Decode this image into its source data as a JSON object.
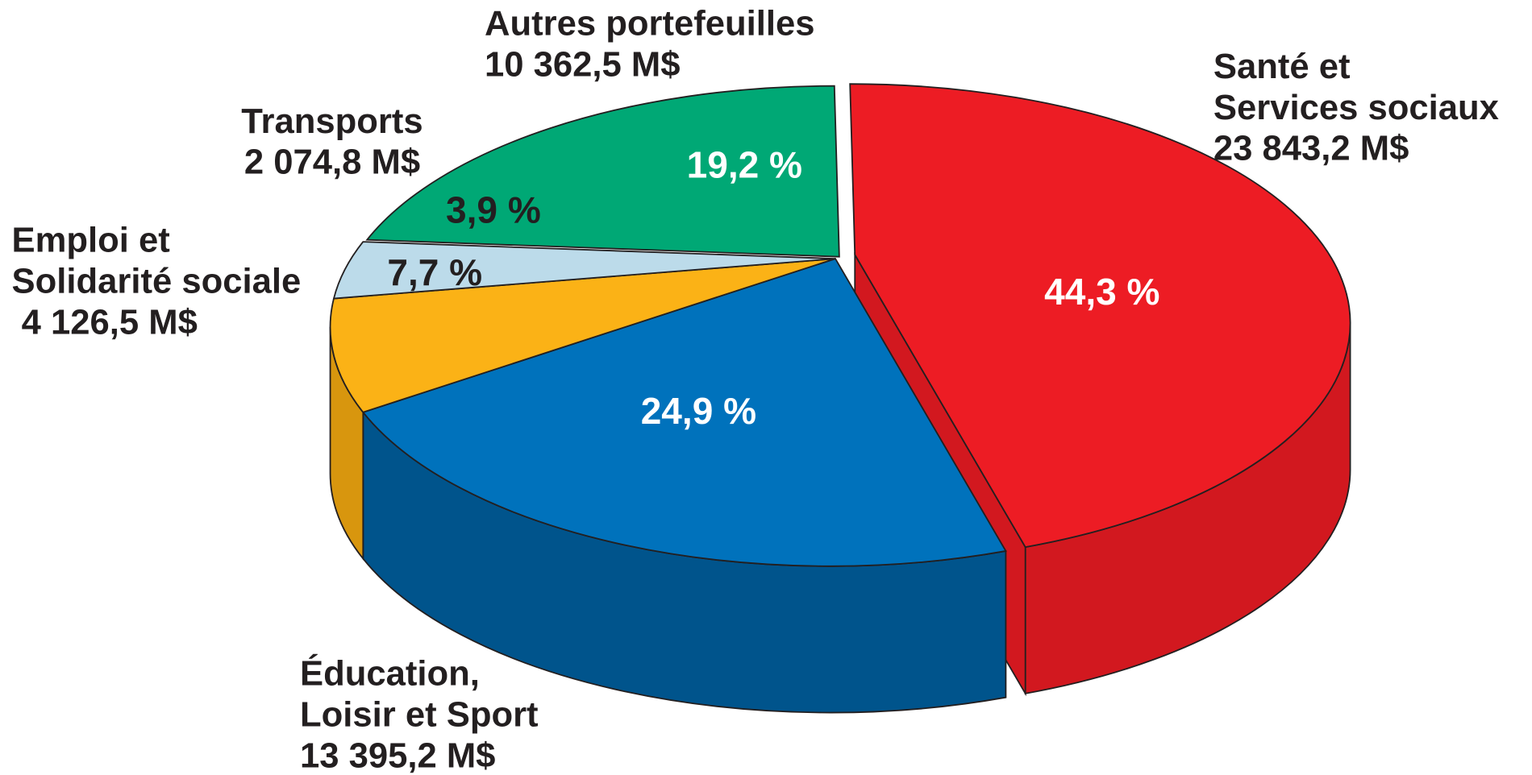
{
  "chart_data": {
    "type": "pie3d",
    "categories": [
      [
        "Santé et",
        "Services sociaux"
      ],
      [
        "Éducation,",
        "Loisir et Sport"
      ],
      [
        "Emploi et",
        "Solidarité sociale"
      ],
      [
        "Transports"
      ],
      [
        "Autres portefeuilles"
      ]
    ],
    "amount_labels": [
      "23 843,2 M$",
      "13 395,2 M$",
      "4 126,5 M$",
      "2 074,8 M$",
      "10 362,5 M$"
    ],
    "values": [
      44.3,
      24.9,
      7.7,
      3.9,
      19.2
    ],
    "value_labels": [
      "44,3 %",
      "24,9 %",
      "7,7 %",
      "3,9 %",
      "19,2 %"
    ],
    "colors": [
      "#ed1c24",
      "#0072bc",
      "#fbb216",
      "#bcdbea",
      "#00a875"
    ],
    "side_colors": [
      "#d2181f",
      "#00548c",
      "#d8960e",
      "#9fbfcf",
      "#007a53"
    ],
    "value_label_colors": [
      "#ffffff",
      "#ffffff",
      "#231f20",
      "#231f20",
      "#ffffff"
    ]
  }
}
